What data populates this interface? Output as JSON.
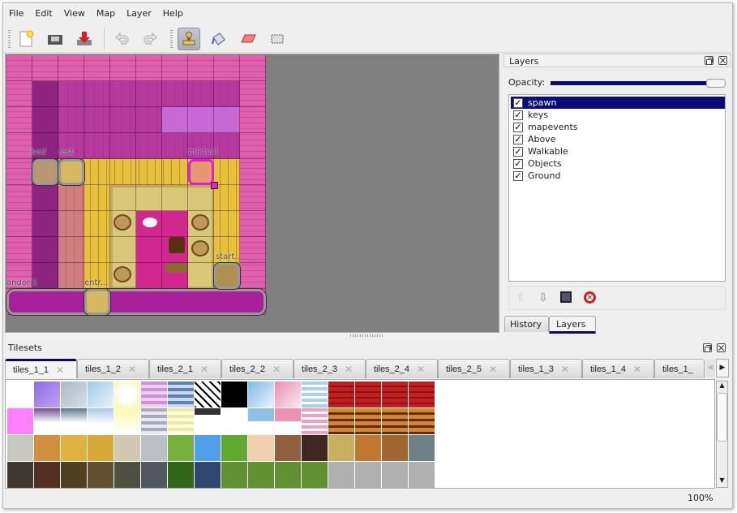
{
  "menu": [
    "File",
    "Edit",
    "View",
    "Map",
    "Layer",
    "Help"
  ],
  "toolbar": {
    "icons": [
      "new-icon",
      "open-icon",
      "save-icon",
      "undo-icon",
      "redo-icon",
      "stamp-brush-icon",
      "bucket-fill-icon",
      "eraser-icon",
      "rectangle-select-icon"
    ],
    "active": "stamp-brush-icon"
  },
  "map": {
    "objects": [
      {
        "label": "bed"
      },
      {
        "label": "rest"
      },
      {
        "label": "mikhail"
      },
      {
        "label": "start..."
      },
      {
        "label": "andor:1"
      },
      {
        "label": "entr..."
      }
    ]
  },
  "layers_panel": {
    "title": "Layers",
    "opacity_label": "Opacity:",
    "opacity": 1.0,
    "layers": [
      {
        "name": "spawn",
        "visible": true,
        "selected": true
      },
      {
        "name": "keys",
        "visible": true
      },
      {
        "name": "mapevents",
        "visible": true
      },
      {
        "name": "Above",
        "visible": true
      },
      {
        "name": "Walkable",
        "visible": true
      },
      {
        "name": "Objects",
        "visible": true
      },
      {
        "name": "Ground",
        "visible": true
      }
    ],
    "tabs": [
      "History",
      "Layers"
    ],
    "active_tab": "Layers"
  },
  "tilesets_panel": {
    "title": "Tilesets",
    "tabs": [
      "tiles_1_1",
      "tiles_1_2",
      "tiles_2_1",
      "tiles_2_2",
      "tiles_2_3",
      "tiles_2_4",
      "tiles_2_5",
      "tiles_1_3",
      "tiles_1_4",
      "tiles_1_"
    ],
    "active_tab": "tiles_1_1"
  },
  "status": {
    "zoom": "100%"
  },
  "colors": {
    "selection": "#0a0a78",
    "accent": "#0a0a60"
  }
}
